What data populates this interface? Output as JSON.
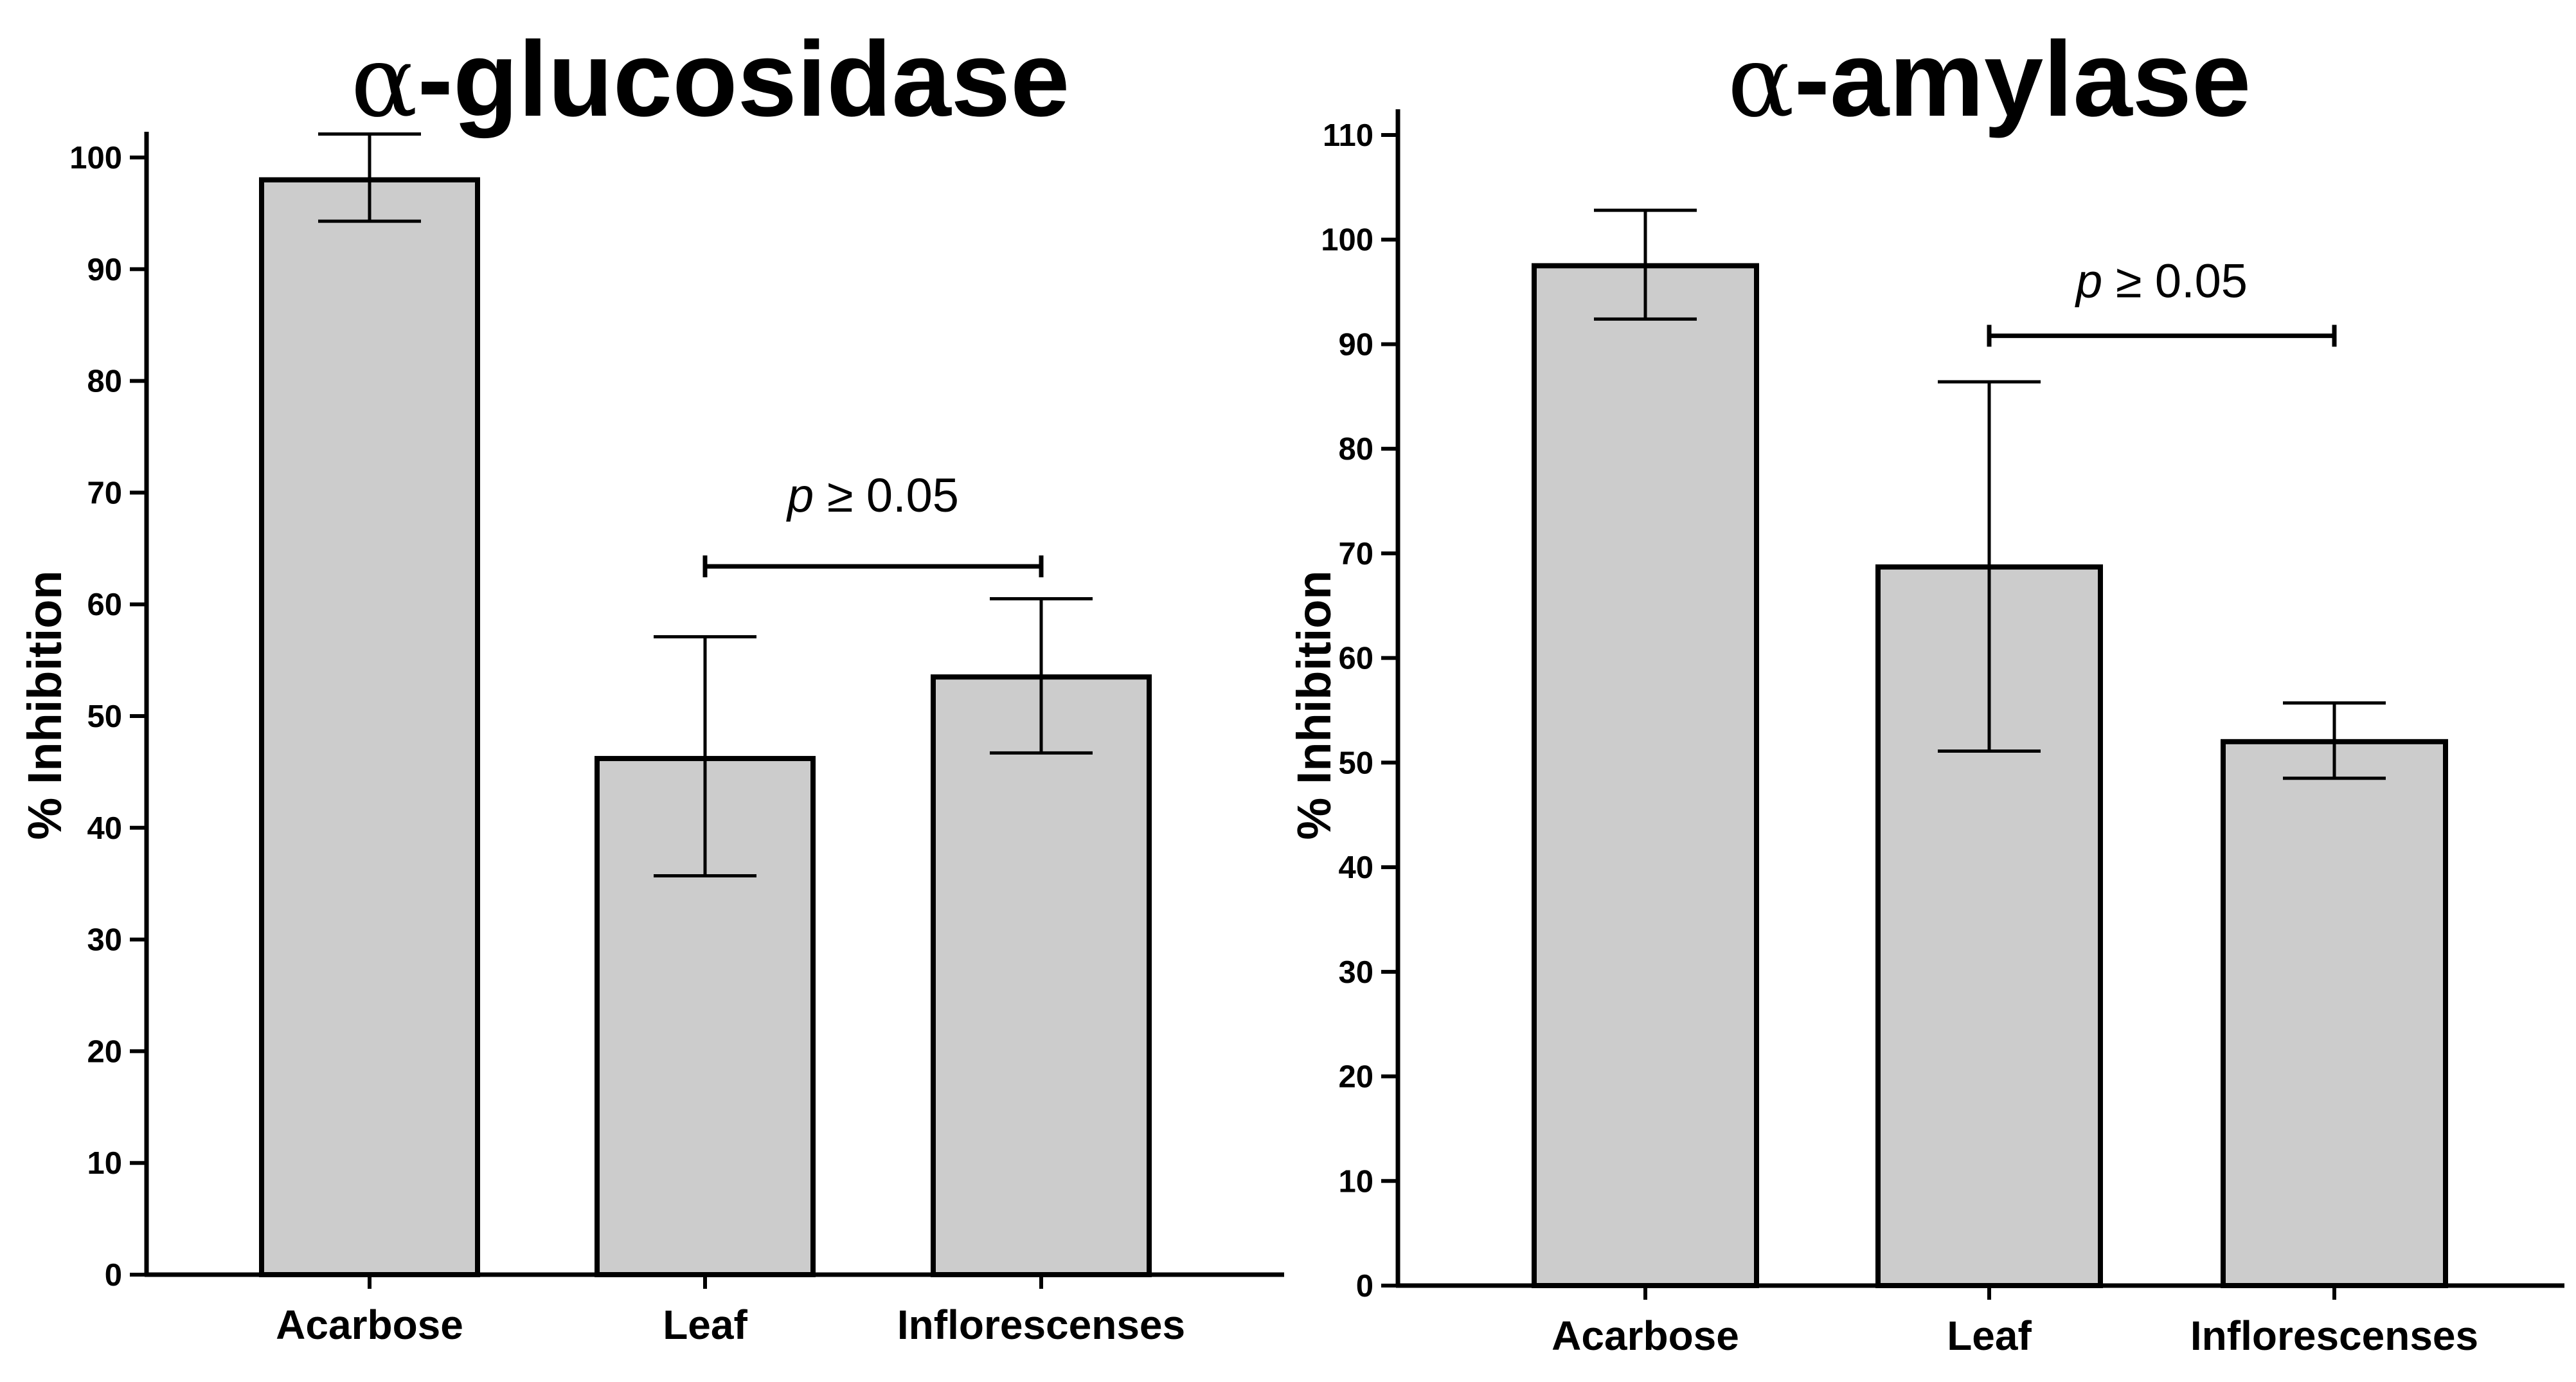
{
  "chart_data": [
    {
      "type": "bar",
      "title_symbol": "α",
      "title_text": "-glucosidase",
      "ylabel": "% Inhibition",
      "ylim": [
        0,
        100
      ],
      "yticks": [
        0,
        10,
        20,
        30,
        40,
        50,
        60,
        70,
        80,
        90,
        100
      ],
      "categories": [
        "Acarbose",
        "Leaf",
        "Inflorescenses"
      ],
      "values": [
        98,
        46.2,
        53.5
      ],
      "error_high": [
        102.1,
        57.1,
        60.5
      ],
      "error_low": [
        94.3,
        35.7,
        46.7
      ],
      "bar_fill": "#cccccc",
      "annotation": {
        "p_symbol": "p",
        "p_text": " ≥ 0.05",
        "from_category": "Leaf",
        "to_category": "Inflorescenses",
        "level": 63.4
      }
    },
    {
      "type": "bar",
      "title_symbol": "α",
      "title_text": "-amylase",
      "ylabel": "% Inhibition",
      "ylim": [
        0,
        110
      ],
      "yticks": [
        0,
        10,
        20,
        30,
        40,
        50,
        60,
        70,
        80,
        90,
        100,
        110
      ],
      "categories": [
        "Acarbose",
        "Leaf",
        "Inflorescenses"
      ],
      "values": [
        97.5,
        68.7,
        52
      ],
      "error_high": [
        102.8,
        86.4,
        55.7
      ],
      "error_low": [
        92.4,
        51.1,
        48.5
      ],
      "bar_fill": "#cccccc",
      "annotation": {
        "p_symbol": "p",
        "p_text": " ≥ 0.05",
        "from_category": "Leaf",
        "to_category": "Inflorescenses",
        "level": 90.8
      }
    }
  ]
}
